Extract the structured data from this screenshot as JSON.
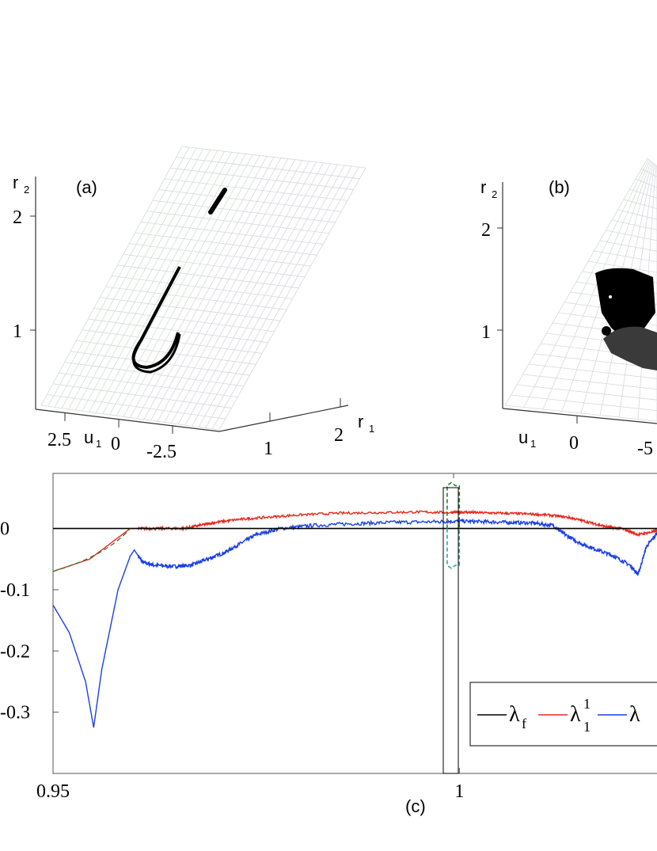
{
  "panel_a": {
    "label": "(a)",
    "z_axis_label": "r",
    "z_axis_sub": "2",
    "z_ticks": [
      "2",
      "1"
    ],
    "u_axis_label": "u",
    "u_axis_sub": "1",
    "u_ticks": [
      "2.5",
      "0",
      "-2.5"
    ],
    "r1_axis_label": "r",
    "r1_axis_sub": "1",
    "r1_ticks": [
      "1",
      "2"
    ]
  },
  "panel_b": {
    "label": "(b)",
    "z_axis_label": "r",
    "z_axis_sub": "2",
    "z_ticks": [
      "2",
      "1"
    ],
    "u_axis_label": "u",
    "u_axis_sub": "1",
    "u_ticks": [
      "0",
      "-5"
    ]
  },
  "panel_c": {
    "label": "(c)",
    "legend": [
      {
        "symbol": "λ",
        "sub": "f",
        "sup": "",
        "color": "#000000"
      },
      {
        "symbol": "λ",
        "sub": "1",
        "sup": "1",
        "color": "#e8281e"
      },
      {
        "symbol": "λ",
        "sub": "",
        "sup": "",
        "color": "#1a3fe6"
      }
    ]
  },
  "chart_data": [
    {
      "type": "scatter",
      "panel": "(a)",
      "z_label": "r2",
      "x_label": "u1",
      "y_label": "r1",
      "z_ticks": [
        2,
        1
      ],
      "u_ticks": [
        2.5,
        0,
        -2.5
      ],
      "r1_ticks": [
        1,
        2
      ]
    },
    {
      "type": "scatter",
      "panel": "(b)",
      "z_label": "r2",
      "x_label": "u1",
      "z_ticks": [
        2,
        1
      ],
      "u_ticks": [
        0,
        -5
      ]
    },
    {
      "type": "line",
      "panel": "(c)",
      "x_ticks": [
        "0.95",
        "1"
      ],
      "y_ticks": [
        "0",
        "-0.1",
        "-0.2",
        "-0.3"
      ],
      "xlim": [
        0.95,
        1.025
      ],
      "ylim": [
        -0.4,
        0.09
      ],
      "series": [
        {
          "name": "λf",
          "color": "#000000",
          "x": [
            0.95,
            1.025
          ],
          "y": [
            0,
            0
          ]
        },
        {
          "name": "λ11",
          "color": "#e8281e",
          "x": [
            0.95,
            0.9545,
            0.9595,
            0.961,
            0.9635,
            0.966,
            0.968,
            0.97,
            0.973,
            0.976,
            0.98,
            0.985,
            0.99,
            0.995,
            0.999,
            1.0,
            1.002,
            1.005,
            1.008,
            1.011,
            1.0135,
            1.016,
            1.018,
            1.02,
            1.022,
            1.024,
            1.025
          ],
          "y": [
            -0.07,
            -0.05,
            0.0,
            0.0,
            0.0,
            0.0,
            0.005,
            0.01,
            0.015,
            0.018,
            0.022,
            0.025,
            0.026,
            0.027,
            0.026,
            0.027,
            0.026,
            0.025,
            0.024,
            0.022,
            0.018,
            0.01,
            0.003,
            0.0,
            -0.01,
            -0.005,
            0.0
          ]
        },
        {
          "name": "λ",
          "color": "#1a3fe6",
          "x": [
            0.95,
            0.952,
            0.954,
            0.955,
            0.956,
            0.958,
            0.9595,
            0.96,
            0.961,
            0.9625,
            0.965,
            0.967,
            0.969,
            0.971,
            0.973,
            0.975,
            0.978,
            0.982,
            0.987,
            0.992,
            0.997,
            1.0,
            1.003,
            1.006,
            1.009,
            1.0115,
            1.013,
            1.015,
            1.017,
            1.019,
            1.021,
            1.022,
            1.023,
            1.0245,
            1.025
          ],
          "y": [
            -0.125,
            -0.17,
            -0.25,
            -0.325,
            -0.23,
            -0.1,
            -0.045,
            -0.035,
            -0.055,
            -0.06,
            -0.062,
            -0.06,
            -0.05,
            -0.04,
            -0.025,
            -0.01,
            0.0,
            0.005,
            0.008,
            0.01,
            0.011,
            0.012,
            0.011,
            0.01,
            0.009,
            0.005,
            -0.01,
            -0.025,
            -0.035,
            -0.045,
            -0.06,
            -0.075,
            -0.03,
            -0.005,
            0.0
          ]
        },
        {
          "name": "",
          "color": "#2a7a2a",
          "x": [
            0.9985,
            0.9985,
            0.999,
            0.9995,
            1.0,
            1.0,
            1.0
          ],
          "y": [
            0.0,
            0.07,
            0.075,
            0.07,
            0.07,
            0.0,
            0.0
          ]
        },
        {
          "name": "",
          "color": "#2aa7a7",
          "x": [
            0.9985,
            0.9985,
            0.999,
            0.9995,
            1.0,
            1.0
          ],
          "y": [
            0.0,
            -0.06,
            -0.065,
            -0.06,
            -0.06,
            0.0
          ]
        }
      ]
    }
  ]
}
